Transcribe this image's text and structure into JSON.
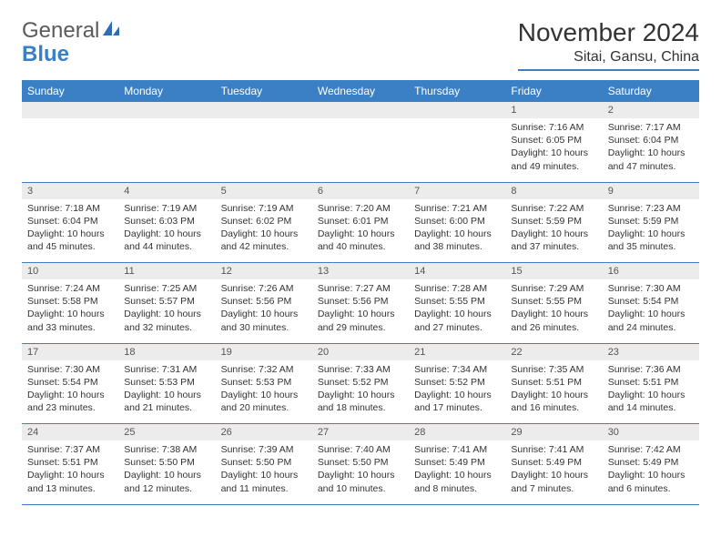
{
  "logo": {
    "general": "General",
    "blue": "Blue"
  },
  "title": "November 2024",
  "location": "Sitai, Gansu, China",
  "colors": {
    "header_bg": "#3b7fc4",
    "header_text": "#ffffff",
    "daynum_bg": "#ececec",
    "border": "#3b7fc4",
    "text": "#333333"
  },
  "weekday_headers": [
    "Sunday",
    "Monday",
    "Tuesday",
    "Wednesday",
    "Thursday",
    "Friday",
    "Saturday"
  ],
  "weeks": [
    {
      "days": [
        {
          "num": "",
          "sunrise": "",
          "sunset": "",
          "daylight": ""
        },
        {
          "num": "",
          "sunrise": "",
          "sunset": "",
          "daylight": ""
        },
        {
          "num": "",
          "sunrise": "",
          "sunset": "",
          "daylight": ""
        },
        {
          "num": "",
          "sunrise": "",
          "sunset": "",
          "daylight": ""
        },
        {
          "num": "",
          "sunrise": "",
          "sunset": "",
          "daylight": ""
        },
        {
          "num": "1",
          "sunrise": "Sunrise: 7:16 AM",
          "sunset": "Sunset: 6:05 PM",
          "daylight": "Daylight: 10 hours and 49 minutes."
        },
        {
          "num": "2",
          "sunrise": "Sunrise: 7:17 AM",
          "sunset": "Sunset: 6:04 PM",
          "daylight": "Daylight: 10 hours and 47 minutes."
        }
      ]
    },
    {
      "days": [
        {
          "num": "3",
          "sunrise": "Sunrise: 7:18 AM",
          "sunset": "Sunset: 6:04 PM",
          "daylight": "Daylight: 10 hours and 45 minutes."
        },
        {
          "num": "4",
          "sunrise": "Sunrise: 7:19 AM",
          "sunset": "Sunset: 6:03 PM",
          "daylight": "Daylight: 10 hours and 44 minutes."
        },
        {
          "num": "5",
          "sunrise": "Sunrise: 7:19 AM",
          "sunset": "Sunset: 6:02 PM",
          "daylight": "Daylight: 10 hours and 42 minutes."
        },
        {
          "num": "6",
          "sunrise": "Sunrise: 7:20 AM",
          "sunset": "Sunset: 6:01 PM",
          "daylight": "Daylight: 10 hours and 40 minutes."
        },
        {
          "num": "7",
          "sunrise": "Sunrise: 7:21 AM",
          "sunset": "Sunset: 6:00 PM",
          "daylight": "Daylight: 10 hours and 38 minutes."
        },
        {
          "num": "8",
          "sunrise": "Sunrise: 7:22 AM",
          "sunset": "Sunset: 5:59 PM",
          "daylight": "Daylight: 10 hours and 37 minutes."
        },
        {
          "num": "9",
          "sunrise": "Sunrise: 7:23 AM",
          "sunset": "Sunset: 5:59 PM",
          "daylight": "Daylight: 10 hours and 35 minutes."
        }
      ]
    },
    {
      "days": [
        {
          "num": "10",
          "sunrise": "Sunrise: 7:24 AM",
          "sunset": "Sunset: 5:58 PM",
          "daylight": "Daylight: 10 hours and 33 minutes."
        },
        {
          "num": "11",
          "sunrise": "Sunrise: 7:25 AM",
          "sunset": "Sunset: 5:57 PM",
          "daylight": "Daylight: 10 hours and 32 minutes."
        },
        {
          "num": "12",
          "sunrise": "Sunrise: 7:26 AM",
          "sunset": "Sunset: 5:56 PM",
          "daylight": "Daylight: 10 hours and 30 minutes."
        },
        {
          "num": "13",
          "sunrise": "Sunrise: 7:27 AM",
          "sunset": "Sunset: 5:56 PM",
          "daylight": "Daylight: 10 hours and 29 minutes."
        },
        {
          "num": "14",
          "sunrise": "Sunrise: 7:28 AM",
          "sunset": "Sunset: 5:55 PM",
          "daylight": "Daylight: 10 hours and 27 minutes."
        },
        {
          "num": "15",
          "sunrise": "Sunrise: 7:29 AM",
          "sunset": "Sunset: 5:55 PM",
          "daylight": "Daylight: 10 hours and 26 minutes."
        },
        {
          "num": "16",
          "sunrise": "Sunrise: 7:30 AM",
          "sunset": "Sunset: 5:54 PM",
          "daylight": "Daylight: 10 hours and 24 minutes."
        }
      ]
    },
    {
      "days": [
        {
          "num": "17",
          "sunrise": "Sunrise: 7:30 AM",
          "sunset": "Sunset: 5:54 PM",
          "daylight": "Daylight: 10 hours and 23 minutes."
        },
        {
          "num": "18",
          "sunrise": "Sunrise: 7:31 AM",
          "sunset": "Sunset: 5:53 PM",
          "daylight": "Daylight: 10 hours and 21 minutes."
        },
        {
          "num": "19",
          "sunrise": "Sunrise: 7:32 AM",
          "sunset": "Sunset: 5:53 PM",
          "daylight": "Daylight: 10 hours and 20 minutes."
        },
        {
          "num": "20",
          "sunrise": "Sunrise: 7:33 AM",
          "sunset": "Sunset: 5:52 PM",
          "daylight": "Daylight: 10 hours and 18 minutes."
        },
        {
          "num": "21",
          "sunrise": "Sunrise: 7:34 AM",
          "sunset": "Sunset: 5:52 PM",
          "daylight": "Daylight: 10 hours and 17 minutes."
        },
        {
          "num": "22",
          "sunrise": "Sunrise: 7:35 AM",
          "sunset": "Sunset: 5:51 PM",
          "daylight": "Daylight: 10 hours and 16 minutes."
        },
        {
          "num": "23",
          "sunrise": "Sunrise: 7:36 AM",
          "sunset": "Sunset: 5:51 PM",
          "daylight": "Daylight: 10 hours and 14 minutes."
        }
      ]
    },
    {
      "days": [
        {
          "num": "24",
          "sunrise": "Sunrise: 7:37 AM",
          "sunset": "Sunset: 5:51 PM",
          "daylight": "Daylight: 10 hours and 13 minutes."
        },
        {
          "num": "25",
          "sunrise": "Sunrise: 7:38 AM",
          "sunset": "Sunset: 5:50 PM",
          "daylight": "Daylight: 10 hours and 12 minutes."
        },
        {
          "num": "26",
          "sunrise": "Sunrise: 7:39 AM",
          "sunset": "Sunset: 5:50 PM",
          "daylight": "Daylight: 10 hours and 11 minutes."
        },
        {
          "num": "27",
          "sunrise": "Sunrise: 7:40 AM",
          "sunset": "Sunset: 5:50 PM",
          "daylight": "Daylight: 10 hours and 10 minutes."
        },
        {
          "num": "28",
          "sunrise": "Sunrise: 7:41 AM",
          "sunset": "Sunset: 5:49 PM",
          "daylight": "Daylight: 10 hours and 8 minutes."
        },
        {
          "num": "29",
          "sunrise": "Sunrise: 7:41 AM",
          "sunset": "Sunset: 5:49 PM",
          "daylight": "Daylight: 10 hours and 7 minutes."
        },
        {
          "num": "30",
          "sunrise": "Sunrise: 7:42 AM",
          "sunset": "Sunset: 5:49 PM",
          "daylight": "Daylight: 10 hours and 6 minutes."
        }
      ]
    }
  ]
}
